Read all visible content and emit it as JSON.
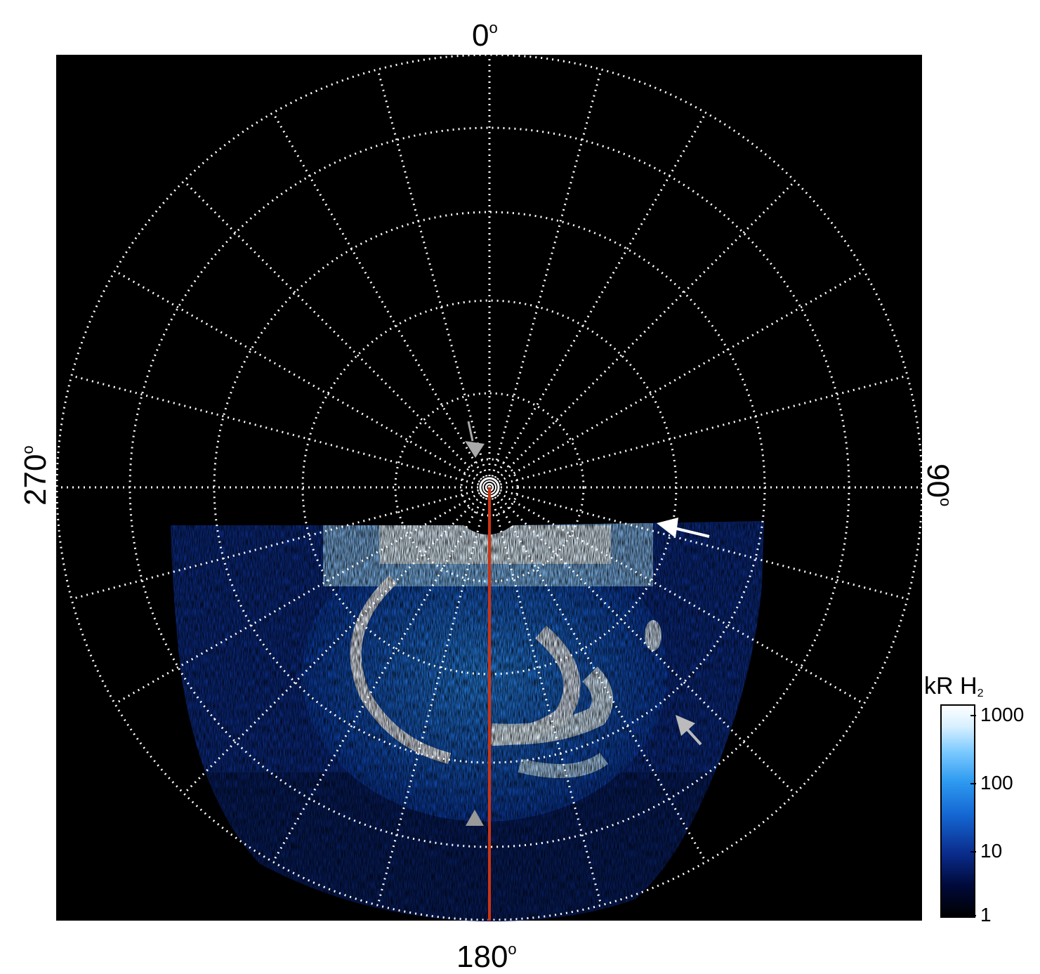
{
  "image": {
    "background_color": "#000000",
    "grid_color": "#ffffff",
    "meridian_line_color": "#cc3311",
    "marker_arrow_color": "#aaaaaa"
  },
  "labels": {
    "top": "0°",
    "top_num": "0",
    "bottom_num": "180",
    "left_num": "270",
    "right_num": "90",
    "degree_symbol": "o"
  },
  "colorbar": {
    "title_main": "kR H",
    "title_sub": "2",
    "scale": "log",
    "ticks": [
      "1000",
      "100",
      "10",
      "1"
    ],
    "colormap": [
      "#000000",
      "#000a3a",
      "#0a2c8c",
      "#1466d2",
      "#2e9af0",
      "#7ccaff",
      "#d8f0ff",
      "#ffffff"
    ]
  },
  "annotations": {
    "arrows": [
      {
        "name": "arrow-dayside-white",
        "color": "#ffffff"
      },
      {
        "name": "arrow-dusk-gray",
        "color": "#bbbbbb"
      }
    ],
    "triangles": [
      {
        "name": "triangle-pole",
        "color": "#aaaaaa"
      },
      {
        "name": "triangle-oval",
        "color": "#999999"
      }
    ]
  }
}
